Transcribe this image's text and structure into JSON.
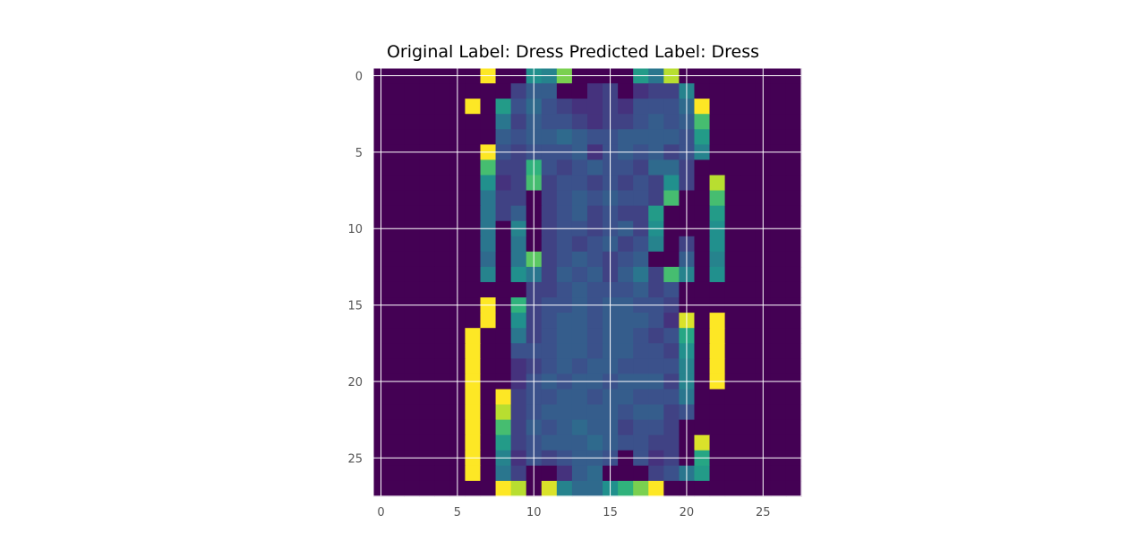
{
  "chart_data": {
    "type": "heatmap",
    "title": "Original Label: Dress  Predicted Label: Dress",
    "colormap": "viridis",
    "grid": true,
    "x_ticks": [
      0,
      5,
      10,
      15,
      20,
      25
    ],
    "y_ticks": [
      0,
      5,
      10,
      15,
      20,
      25
    ],
    "xlim": [
      -0.5,
      27.5
    ],
    "ylim": [
      27.5,
      -0.5
    ],
    "vmin": 0,
    "vmax": 1,
    "colors": {
      "grid": "#ffffff",
      "tick_text": "#555555",
      "spine": "#ffffff"
    },
    "z": [
      [
        0.0,
        0.0,
        0.0,
        0.0,
        0.0,
        0.0,
        0.0,
        1.0,
        0.0,
        0.0,
        0.5,
        0.45,
        0.8,
        0.0,
        0.0,
        0.0,
        0.0,
        0.55,
        0.4,
        0.9,
        0.0,
        0.0,
        0.0,
        0.0,
        0.0,
        0.0,
        0.0,
        0.0
      ],
      [
        0.0,
        0.0,
        0.0,
        0.0,
        0.0,
        0.0,
        0.0,
        0.0,
        0.0,
        0.2,
        0.3,
        0.3,
        0.0,
        0.0,
        0.15,
        0.2,
        0.0,
        0.15,
        0.2,
        0.2,
        0.45,
        0.0,
        0.0,
        0.0,
        0.0,
        0.0,
        0.0,
        0.0
      ],
      [
        0.0,
        0.0,
        0.0,
        0.0,
        0.0,
        0.0,
        1.0,
        0.0,
        0.55,
        0.25,
        0.35,
        0.25,
        0.2,
        0.15,
        0.15,
        0.2,
        0.15,
        0.25,
        0.25,
        0.25,
        0.35,
        1.0,
        0.0,
        0.0,
        0.0,
        0.0,
        0.0,
        0.0
      ],
      [
        0.0,
        0.0,
        0.0,
        0.0,
        0.0,
        0.0,
        0.0,
        0.0,
        0.4,
        0.2,
        0.3,
        0.25,
        0.25,
        0.2,
        0.15,
        0.2,
        0.2,
        0.25,
        0.3,
        0.25,
        0.3,
        0.7,
        0.0,
        0.0,
        0.0,
        0.0,
        0.0,
        0.0
      ],
      [
        0.0,
        0.0,
        0.0,
        0.0,
        0.0,
        0.0,
        0.0,
        0.0,
        0.3,
        0.25,
        0.3,
        0.3,
        0.35,
        0.3,
        0.25,
        0.25,
        0.3,
        0.3,
        0.3,
        0.3,
        0.25,
        0.55,
        0.0,
        0.0,
        0.0,
        0.0,
        0.0,
        0.0
      ],
      [
        0.0,
        0.0,
        0.0,
        0.0,
        0.0,
        0.0,
        0.0,
        1.0,
        0.25,
        0.2,
        0.25,
        0.25,
        0.25,
        0.3,
        0.15,
        0.25,
        0.3,
        0.25,
        0.3,
        0.2,
        0.25,
        0.45,
        0.0,
        0.0,
        0.0,
        0.0,
        0.0,
        0.0
      ],
      [
        0.0,
        0.0,
        0.0,
        0.0,
        0.0,
        0.0,
        0.0,
        0.7,
        0.2,
        0.2,
        0.65,
        0.25,
        0.2,
        0.25,
        0.3,
        0.25,
        0.25,
        0.2,
        0.35,
        0.35,
        0.2,
        0.0,
        0.0,
        0.0,
        0.0,
        0.0,
        0.0,
        0.0
      ],
      [
        0.0,
        0.0,
        0.0,
        0.0,
        0.0,
        0.0,
        0.0,
        0.5,
        0.15,
        0.2,
        0.7,
        0.2,
        0.25,
        0.25,
        0.2,
        0.25,
        0.2,
        0.25,
        0.2,
        0.5,
        0.2,
        0.0,
        0.9,
        0.0,
        0.0,
        0.0,
        0.0,
        0.0
      ],
      [
        0.0,
        0.0,
        0.0,
        0.0,
        0.0,
        0.0,
        0.0,
        0.4,
        0.2,
        0.2,
        0.0,
        0.2,
        0.25,
        0.3,
        0.25,
        0.3,
        0.25,
        0.25,
        0.2,
        0.7,
        0.0,
        0.0,
        0.7,
        0.0,
        0.0,
        0.0,
        0.0,
        0.0
      ],
      [
        0.0,
        0.0,
        0.0,
        0.0,
        0.0,
        0.0,
        0.0,
        0.4,
        0.2,
        0.3,
        0.0,
        0.2,
        0.25,
        0.3,
        0.2,
        0.25,
        0.2,
        0.2,
        0.55,
        0.0,
        0.0,
        0.0,
        0.55,
        0.0,
        0.0,
        0.0,
        0.0,
        0.0
      ],
      [
        0.0,
        0.0,
        0.0,
        0.0,
        0.0,
        0.0,
        0.0,
        0.4,
        0.0,
        0.45,
        0.0,
        0.2,
        0.25,
        0.25,
        0.2,
        0.25,
        0.3,
        0.2,
        0.5,
        0.0,
        0.0,
        0.0,
        0.5,
        0.0,
        0.0,
        0.0,
        0.0,
        0.0
      ],
      [
        0.0,
        0.0,
        0.0,
        0.0,
        0.0,
        0.0,
        0.0,
        0.4,
        0.0,
        0.4,
        0.0,
        0.2,
        0.25,
        0.2,
        0.25,
        0.3,
        0.2,
        0.25,
        0.45,
        0.0,
        0.2,
        0.0,
        0.5,
        0.0,
        0.0,
        0.0,
        0.0,
        0.0
      ],
      [
        0.0,
        0.0,
        0.0,
        0.0,
        0.0,
        0.0,
        0.0,
        0.35,
        0.0,
        0.4,
        0.75,
        0.2,
        0.25,
        0.3,
        0.25,
        0.2,
        0.25,
        0.3,
        0.0,
        0.0,
        0.3,
        0.0,
        0.45,
        0.0,
        0.0,
        0.0,
        0.0,
        0.0
      ],
      [
        0.0,
        0.0,
        0.0,
        0.0,
        0.0,
        0.0,
        0.0,
        0.45,
        0.0,
        0.5,
        0.4,
        0.2,
        0.3,
        0.25,
        0.3,
        0.2,
        0.3,
        0.4,
        0.2,
        0.7,
        0.45,
        0.0,
        0.5,
        0.0,
        0.0,
        0.0,
        0.0,
        0.0
      ],
      [
        0.0,
        0.0,
        0.0,
        0.0,
        0.0,
        0.0,
        0.0,
        0.0,
        0.0,
        0.0,
        0.2,
        0.2,
        0.25,
        0.3,
        0.25,
        0.25,
        0.25,
        0.3,
        0.2,
        0.25,
        0.0,
        0.0,
        0.0,
        0.0,
        0.0,
        0.0,
        0.0,
        0.0
      ],
      [
        0.0,
        0.0,
        0.0,
        0.0,
        0.0,
        0.0,
        0.0,
        1.0,
        0.0,
        0.65,
        0.2,
        0.25,
        0.25,
        0.3,
        0.25,
        0.3,
        0.3,
        0.25,
        0.25,
        0.2,
        0.0,
        0.0,
        0.0,
        0.0,
        0.0,
        0.0,
        0.0,
        0.0
      ],
      [
        0.0,
        0.0,
        0.0,
        0.0,
        0.0,
        0.0,
        0.0,
        1.0,
        0.0,
        0.5,
        0.2,
        0.25,
        0.3,
        0.3,
        0.25,
        0.3,
        0.3,
        0.3,
        0.25,
        0.15,
        0.95,
        0.0,
        1.0,
        0.0,
        0.0,
        0.0,
        0.0,
        0.0
      ],
      [
        0.0,
        0.0,
        0.0,
        0.0,
        0.0,
        0.0,
        1.0,
        0.0,
        0.0,
        0.4,
        0.2,
        0.25,
        0.3,
        0.3,
        0.25,
        0.3,
        0.3,
        0.25,
        0.2,
        0.25,
        0.6,
        0.0,
        1.0,
        0.0,
        0.0,
        0.0,
        0.0,
        0.0
      ],
      [
        0.0,
        0.0,
        0.0,
        0.0,
        0.0,
        0.0,
        1.0,
        0.0,
        0.0,
        0.25,
        0.25,
        0.25,
        0.3,
        0.3,
        0.25,
        0.3,
        0.3,
        0.25,
        0.25,
        0.2,
        0.5,
        0.0,
        1.0,
        0.0,
        0.0,
        0.0,
        0.0,
        0.0
      ],
      [
        0.0,
        0.0,
        0.0,
        0.0,
        0.0,
        0.0,
        1.0,
        0.0,
        0.0,
        0.15,
        0.2,
        0.25,
        0.3,
        0.25,
        0.3,
        0.3,
        0.25,
        0.25,
        0.25,
        0.25,
        0.45,
        0.0,
        1.0,
        0.0,
        0.0,
        0.0,
        0.0,
        0.0
      ],
      [
        0.0,
        0.0,
        0.0,
        0.0,
        0.0,
        0.0,
        1.0,
        0.0,
        0.0,
        0.15,
        0.25,
        0.3,
        0.25,
        0.3,
        0.3,
        0.25,
        0.3,
        0.3,
        0.3,
        0.2,
        0.45,
        0.0,
        1.0,
        0.0,
        0.0,
        0.0,
        0.0,
        0.0
      ],
      [
        0.0,
        0.0,
        0.0,
        0.0,
        0.0,
        0.0,
        1.0,
        0.0,
        1.0,
        0.2,
        0.25,
        0.25,
        0.3,
        0.3,
        0.25,
        0.3,
        0.3,
        0.25,
        0.25,
        0.25,
        0.4,
        0.0,
        0.0,
        0.0,
        0.0,
        0.0,
        0.0,
        0.0
      ],
      [
        0.0,
        0.0,
        0.0,
        0.0,
        0.0,
        0.0,
        1.0,
        0.0,
        0.9,
        0.2,
        0.25,
        0.3,
        0.3,
        0.3,
        0.3,
        0.3,
        0.25,
        0.3,
        0.3,
        0.2,
        0.25,
        0.0,
        0.0,
        0.0,
        0.0,
        0.0,
        0.0,
        0.0
      ],
      [
        0.0,
        0.0,
        0.0,
        0.0,
        0.0,
        0.0,
        1.0,
        0.0,
        0.7,
        0.2,
        0.3,
        0.25,
        0.3,
        0.35,
        0.3,
        0.3,
        0.2,
        0.25,
        0.25,
        0.2,
        0.0,
        0.0,
        0.0,
        0.0,
        0.0,
        0.0,
        0.0,
        0.0
      ],
      [
        0.0,
        0.0,
        0.0,
        0.0,
        0.0,
        0.0,
        1.0,
        0.0,
        0.55,
        0.2,
        0.25,
        0.3,
        0.3,
        0.3,
        0.35,
        0.3,
        0.25,
        0.25,
        0.2,
        0.2,
        0.0,
        0.95,
        0.0,
        0.0,
        0.0,
        0.0,
        0.0,
        0.0
      ],
      [
        0.0,
        0.0,
        0.0,
        0.0,
        0.0,
        0.0,
        1.0,
        0.0,
        0.45,
        0.15,
        0.25,
        0.2,
        0.25,
        0.3,
        0.3,
        0.25,
        0.0,
        0.25,
        0.15,
        0.2,
        0.0,
        0.6,
        0.0,
        0.0,
        0.0,
        0.0,
        0.0,
        0.0
      ],
      [
        0.0,
        0.0,
        0.0,
        0.0,
        0.0,
        0.0,
        1.0,
        0.0,
        0.4,
        0.2,
        0.0,
        0.0,
        0.15,
        0.3,
        0.35,
        0.0,
        0.0,
        0.0,
        0.2,
        0.25,
        0.4,
        0.55,
        0.0,
        0.0,
        0.0,
        0.0,
        0.0,
        0.0
      ],
      [
        0.0,
        0.0,
        0.0,
        0.0,
        0.0,
        0.0,
        0.0,
        0.0,
        1.0,
        0.9,
        0.0,
        0.95,
        0.45,
        0.35,
        0.35,
        0.5,
        0.65,
        0.8,
        1.0,
        0.0,
        0.0,
        0.0,
        0.0,
        0.0,
        0.0,
        0.0,
        0.0,
        0.0
      ]
    ]
  }
}
